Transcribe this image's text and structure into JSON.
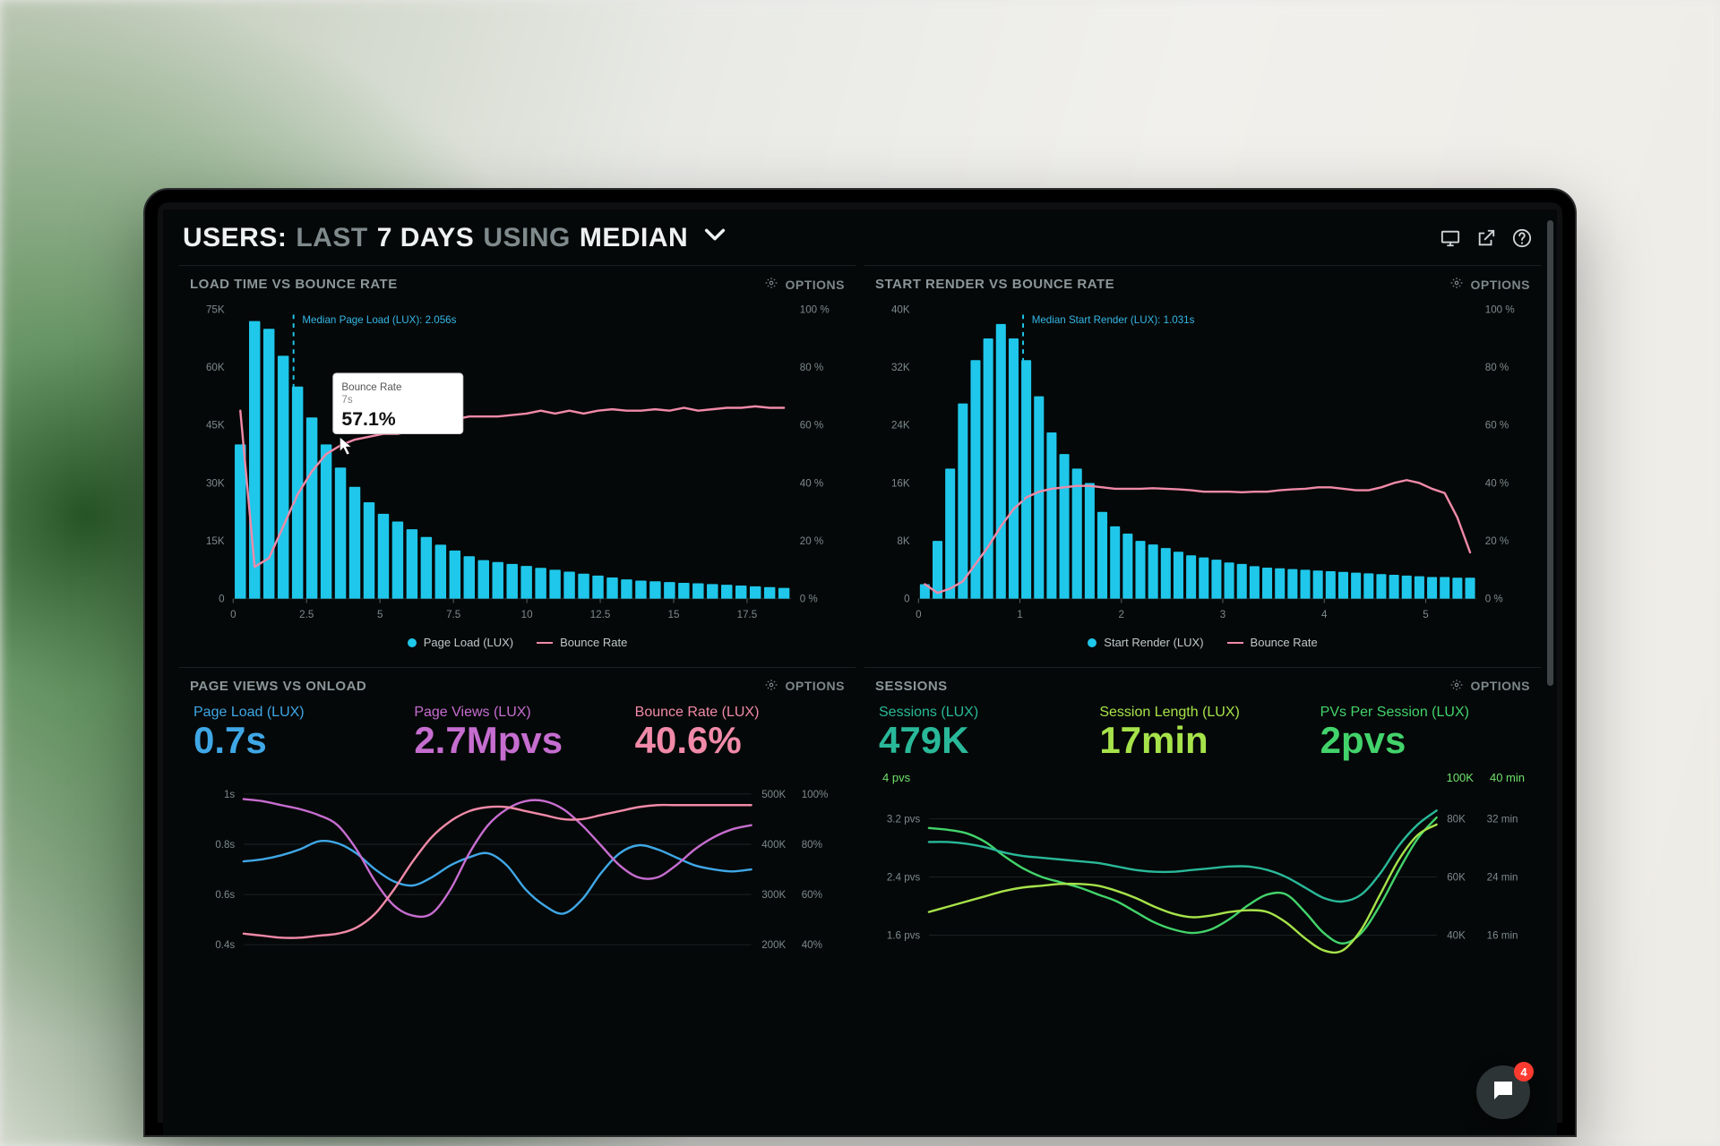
{
  "colors": {
    "bg": "#050808",
    "text_muted": "#7f8a8c",
    "text": "#eef2f2",
    "grid": "#1a2326",
    "cyan": "#1fc7ea",
    "cyan_dark": "#1797b8",
    "pink": "#f08aa8",
    "magenta": "#c66dd0",
    "blue": "#3fa7e6",
    "green": "#42d36b",
    "lime": "#a6e34a",
    "teal": "#29b899",
    "badge_red": "#ff3b30"
  },
  "header": {
    "prefix": "USERS:",
    "word1": "LAST",
    "word2": "7 DAYS",
    "word3": "USING",
    "word4": "MEDIAN",
    "options_label": "OPTIONS"
  },
  "chat": {
    "unread": "4"
  },
  "panel1": {
    "title": "LOAD TIME VS BOUNCE RATE",
    "options": "OPTIONS",
    "xlim": [
      0,
      19
    ],
    "ylimL": [
      0,
      75
    ],
    "ylimR": [
      0,
      100
    ],
    "xticks": [
      0,
      2.5,
      5,
      7.5,
      10,
      12.5,
      15,
      17.5
    ],
    "yL_ticks": [
      {
        "v": 75,
        "label": "75K"
      },
      {
        "v": 60,
        "label": "60K"
      },
      {
        "v": 45,
        "label": "45K"
      },
      {
        "v": 30,
        "label": "30K"
      },
      {
        "v": 15,
        "label": "15K"
      },
      {
        "v": 0,
        "label": "0"
      }
    ],
    "yR_ticks": [
      {
        "v": 100,
        "label": "100 %"
      },
      {
        "v": 80,
        "label": "80 %"
      },
      {
        "v": 60,
        "label": "60 %"
      },
      {
        "v": 40,
        "label": "40 %"
      },
      {
        "v": 20,
        "label": "20 %"
      },
      {
        "v": 0,
        "label": "0 %"
      }
    ],
    "bar_color": "#1fc7ea",
    "line_color": "#f08aa8",
    "bar_values": [
      40,
      72,
      70,
      63,
      55,
      47,
      40,
      34,
      29,
      25,
      22,
      20,
      18,
      16,
      14,
      12.5,
      11,
      10,
      9.5,
      9,
      8.5,
      8,
      7.5,
      7,
      6.5,
      6,
      5.5,
      5,
      4.7,
      4.5,
      4.3,
      4.1,
      4,
      3.8,
      3.6,
      3.4,
      3.2,
      3.0,
      2.8
    ],
    "line_values": [
      65,
      11,
      14,
      25,
      36,
      44,
      50,
      53,
      55,
      56,
      57,
      57,
      58,
      59,
      60,
      62,
      63,
      63,
      63,
      63.5,
      64,
      65,
      64,
      65,
      64,
      65,
      65.5,
      65,
      65,
      65.5,
      65,
      66,
      65,
      65.5,
      66,
      66,
      66.5,
      66,
      66
    ],
    "marker_x": 2.056,
    "marker_label": "Median Page Load (LUX): 2.056s",
    "tooltip": {
      "head": "Bounce Rate",
      "sub": "7s",
      "value": "57.1%"
    },
    "legend_bar": "Page Load (LUX)",
    "legend_line": "Bounce Rate"
  },
  "panel2": {
    "title": "START RENDER VS BOUNCE RATE",
    "options": "OPTIONS",
    "xlim": [
      0,
      5.5
    ],
    "ylimL": [
      0,
      40
    ],
    "ylimR": [
      0,
      100
    ],
    "xticks": [
      0,
      1,
      2,
      3,
      4,
      5
    ],
    "yL_ticks": [
      {
        "v": 40,
        "label": "40K"
      },
      {
        "v": 32,
        "label": "32K"
      },
      {
        "v": 24,
        "label": "24K"
      },
      {
        "v": 16,
        "label": "16K"
      },
      {
        "v": 8,
        "label": "8K"
      },
      {
        "v": 0,
        "label": "0"
      }
    ],
    "yR_ticks": [
      {
        "v": 100,
        "label": "100 %"
      },
      {
        "v": 80,
        "label": "80 %"
      },
      {
        "v": 60,
        "label": "60 %"
      },
      {
        "v": 40,
        "label": "40 %"
      },
      {
        "v": 20,
        "label": "20 %"
      },
      {
        "v": 0,
        "label": "0 %"
      }
    ],
    "bar_color": "#1fc7ea",
    "line_color": "#f08aa8",
    "bar_values": [
      2,
      8,
      18,
      27,
      33,
      36,
      38,
      36,
      33,
      28,
      23,
      20,
      18,
      16,
      12,
      10,
      9,
      8,
      7.5,
      7,
      6.5,
      6,
      5.7,
      5.4,
      5,
      4.8,
      4.5,
      4.3,
      4.2,
      4.1,
      4,
      3.9,
      3.8,
      3.7,
      3.6,
      3.5,
      3.4,
      3.3,
      3.2,
      3.1,
      3,
      3,
      2.9,
      2.9
    ],
    "line_values": [
      5,
      2,
      3.5,
      6,
      12,
      18,
      25,
      31,
      35,
      37,
      38,
      38.5,
      39,
      39,
      38.5,
      38,
      38,
      38,
      38.2,
      38,
      37.8,
      37.5,
      37,
      37,
      37,
      36.8,
      37,
      37,
      37.5,
      37.8,
      38,
      38.5,
      38.5,
      38,
      37.5,
      37.5,
      38.5,
      40,
      41,
      40,
      38,
      36.5,
      28,
      16
    ],
    "marker_x": 1.031,
    "marker_label": "Median Start Render (LUX): 1.031s",
    "legend_bar": "Start Render (LUX)",
    "legend_line": "Bounce Rate"
  },
  "panel3": {
    "title": "PAGE VIEWS VS ONLOAD",
    "options": "OPTIONS",
    "metrics": [
      {
        "label": "Page Load (LUX)",
        "value": "0.7s",
        "color": "#3fa7e6"
      },
      {
        "label": "Page Views (LUX)",
        "value": "2.7Mpvs",
        "color": "#c66dd0"
      },
      {
        "label": "Bounce Rate (LUX)",
        "value": "40.6%",
        "color": "#f08aa8"
      }
    ],
    "ylabels_left": [
      "1s",
      "0.8s",
      "0.6s",
      "0.4s"
    ],
    "ylabels_right_a": [
      "500K",
      "400K",
      "300K",
      "200K"
    ],
    "ylabels_right_b": [
      "100%",
      "80%",
      "60%",
      "40%"
    ],
    "grid_color": "#1a2326",
    "series": {
      "blue": {
        "color": "#3fa7e6",
        "vals": [
          54,
          55,
          57,
          60,
          64,
          63,
          58,
          50,
          44,
          42,
          46,
          52,
          56,
          58,
          52,
          40,
          32,
          28,
          35,
          48,
          58,
          62,
          60,
          56,
          52,
          50,
          49,
          50
        ]
      },
      "magenta": {
        "color": "#c66dd0",
        "vals": [
          85,
          84,
          82,
          80,
          77,
          72,
          60,
          44,
          32,
          27,
          28,
          40,
          58,
          72,
          80,
          84,
          84,
          80,
          72,
          62,
          52,
          46,
          46,
          52,
          60,
          66,
          70,
          72
        ]
      },
      "pink": {
        "color": "#f08aa8",
        "vals": [
          18,
          17,
          16,
          16,
          17,
          18,
          21,
          28,
          40,
          54,
          66,
          74,
          79,
          81,
          81,
          79,
          77,
          75,
          75,
          77,
          79,
          81,
          82,
          82,
          82,
          82,
          82,
          82
        ]
      }
    }
  },
  "panel4": {
    "title": "SESSIONS",
    "options": "OPTIONS",
    "metrics": [
      {
        "label": "Sessions (LUX)",
        "value": "479K",
        "color": "#29b899"
      },
      {
        "label": "Session Length (LUX)",
        "value": "17min",
        "color": "#a6e34a"
      },
      {
        "label": "PVs Per Session (LUX)",
        "value": "2pvs",
        "color": "#42d36b"
      }
    ],
    "top_left": "4 pvs",
    "top_right_a": "100K",
    "top_right_b": "40 min",
    "ylabels_left": [
      "3.2 pvs",
      "2.4 pvs",
      "1.6 pvs"
    ],
    "ylabels_right_a": [
      "80K",
      "60K",
      "40K"
    ],
    "ylabels_right_b": [
      "32 min",
      "24 min",
      "16 min"
    ],
    "grid_color": "#1a2326",
    "series": {
      "green": {
        "color": "#42d36b",
        "vals": [
          78,
          77,
          75,
          70,
          62,
          55,
          50,
          47,
          44,
          40,
          36,
          30,
          24,
          20,
          18,
          20,
          26,
          34,
          40,
          40,
          30,
          18,
          12,
          18,
          34,
          54,
          72,
          84
        ]
      },
      "teal": {
        "color": "#29b899",
        "vals": [
          70,
          70,
          69,
          67,
          64,
          62,
          61,
          60,
          59,
          58,
          56,
          54,
          53,
          53,
          54,
          55,
          56,
          56,
          54,
          50,
          44,
          38,
          36,
          40,
          52,
          68,
          80,
          88
        ]
      },
      "lime": {
        "color": "#a6e34a",
        "vals": [
          30,
          33,
          36,
          39,
          42,
          44,
          45,
          46,
          46,
          45,
          42,
          38,
          33,
          29,
          27,
          28,
          30,
          31,
          30,
          24,
          15,
          8,
          8,
          20,
          40,
          60,
          74,
          80
        ]
      }
    }
  }
}
